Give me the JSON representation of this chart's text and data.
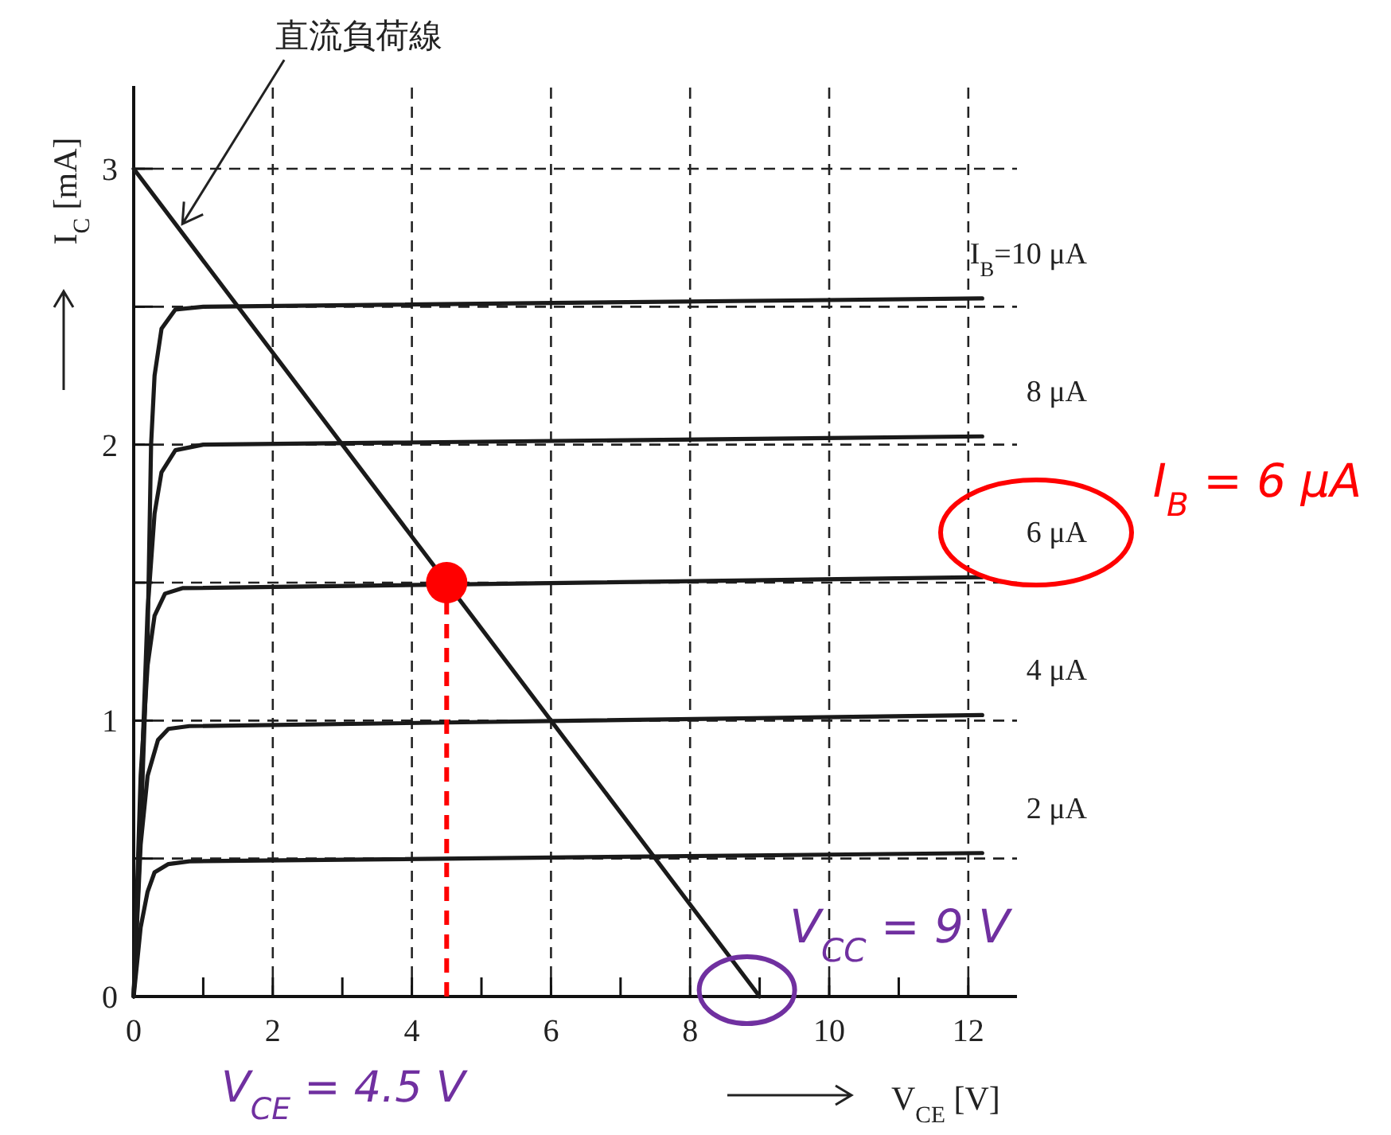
{
  "chart_data": {
    "type": "line",
    "xlabel": "V$_{CE}$ [V]",
    "ylabel": "I$_{C}$ [mA]",
    "xlim": [
      0,
      12.7
    ],
    "ylim": [
      0,
      3.3
    ],
    "xticks": [
      0,
      {
        "value": 1,
        "label": null
      },
      2,
      {
        "value": 3,
        "label": null
      },
      4,
      {
        "value": 5,
        "label": null
      },
      6,
      {
        "value": 7,
        "label": null
      },
      8,
      {
        "value": 9,
        "label": null
      },
      10,
      {
        "value": 11,
        "label": null
      },
      12
    ],
    "yticks": [
      0,
      {
        "value": 0.5,
        "label": null
      },
      1,
      {
        "value": 1.5,
        "label": null
      },
      2,
      {
        "value": 2.5,
        "label": null
      },
      3
    ],
    "grid": true,
    "marker": "none",
    "line_style": "solid",
    "series": [
      {
        "name": "I$_{B}$=10 μA",
        "color": "#1a1a1a",
        "x": [
          0,
          0.1,
          0.2,
          0.25,
          0.3,
          0.4,
          0.6,
          1,
          12.2
        ],
        "values": [
          0,
          0.6,
          1.3,
          2.0,
          2.25,
          2.42,
          2.49,
          2.5,
          2.53
        ]
      },
      {
        "name": "8 μA",
        "color": "#1a1a1a",
        "x": [
          0,
          0.1,
          0.2,
          0.3,
          0.4,
          0.6,
          1,
          12.2
        ],
        "values": [
          0,
          0.7,
          1.4,
          1.75,
          1.9,
          1.98,
          2.0,
          2.03
        ]
      },
      {
        "name": "6 μA",
        "color": "#1a1a1a",
        "x": [
          0,
          0.1,
          0.2,
          0.3,
          0.45,
          0.7,
          12.2
        ],
        "values": [
          0,
          0.8,
          1.2,
          1.38,
          1.46,
          1.48,
          1.52
        ]
      },
      {
        "name": "4 μA",
        "color": "#1a1a1a",
        "x": [
          0,
          0.1,
          0.2,
          0.35,
          0.5,
          0.8,
          12.2
        ],
        "values": [
          0,
          0.55,
          0.8,
          0.93,
          0.97,
          0.98,
          1.02
        ]
      },
      {
        "name": "2 μA",
        "color": "#1a1a1a",
        "x": [
          0,
          0.1,
          0.2,
          0.3,
          0.5,
          0.8,
          12.2
        ],
        "values": [
          0,
          0.25,
          0.38,
          0.45,
          0.48,
          0.49,
          0.52
        ]
      },
      {
        "color": "#1a1a1a",
        "x": [
          0,
          9
        ],
        "values": [
          3,
          0
        ]
      },
      {
        "color": "#ff0000",
        "line_style": "dashed",
        "x": [
          4.5,
          4.5
        ],
        "values": [
          0,
          1.5
        ]
      },
      {
        "type": "scatter",
        "color": "#ff0000",
        "marker": "circle",
        "x": [
          4.5
        ],
        "values": [
          1.5
        ]
      }
    ],
    "annotations": [
      {
        "text": "直流負荷線",
        "x": 0.7,
        "y": 2.8
      },
      "I$_{B}$ = 6 μA",
      {
        "text": "V$_{CC}$ = 9 V",
        "x": 9,
        "y": 0
      },
      {
        "text": "V$_{CE}$ = 4.5 V",
        "x": 4.5,
        "y": 0
      }
    ]
  }
}
